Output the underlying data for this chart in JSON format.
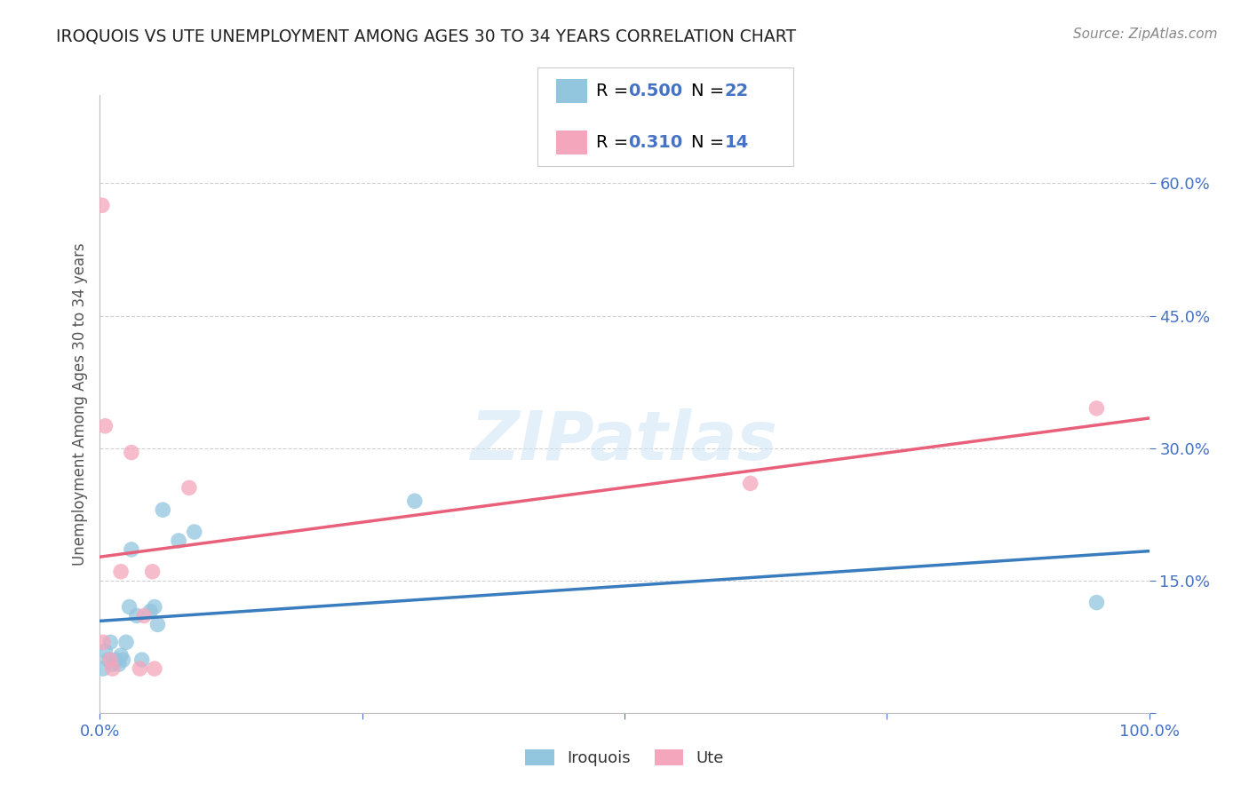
{
  "title": "IROQUOIS VS UTE UNEMPLOYMENT AMONG AGES 30 TO 34 YEARS CORRELATION CHART",
  "source": "Source: ZipAtlas.com",
  "ylabel": "Unemployment Among Ages 30 to 34 years",
  "xlim": [
    0,
    1.0
  ],
  "ylim": [
    0,
    0.7
  ],
  "xticks": [
    0.0,
    0.25,
    0.5,
    0.75,
    1.0
  ],
  "xticklabels": [
    "0.0%",
    "",
    "",
    "",
    "100.0%"
  ],
  "yticks": [
    0.0,
    0.15,
    0.3,
    0.45,
    0.6
  ],
  "yticklabels": [
    "",
    "15.0%",
    "30.0%",
    "45.0%",
    "60.0%"
  ],
  "iroquois_color": "#92c5de",
  "iroquois_line_color": "#3a7dbf",
  "iroquois_dash_color": "#92c5de",
  "ute_color": "#f4a6bc",
  "ute_line_color": "#e8607a",
  "iroquois_R": 0.5,
  "iroquois_N": 22,
  "ute_R": 0.31,
  "ute_N": 14,
  "iroquois_x": [
    0.003,
    0.005,
    0.008,
    0.01,
    0.012,
    0.015,
    0.018,
    0.02,
    0.022,
    0.025,
    0.028,
    0.03,
    0.035,
    0.04,
    0.048,
    0.052,
    0.055,
    0.06,
    0.075,
    0.09,
    0.3,
    0.95
  ],
  "iroquois_y": [
    0.05,
    0.07,
    0.06,
    0.08,
    0.055,
    0.06,
    0.055,
    0.065,
    0.06,
    0.08,
    0.12,
    0.185,
    0.11,
    0.06,
    0.115,
    0.12,
    0.1,
    0.23,
    0.195,
    0.205,
    0.24,
    0.125
  ],
  "ute_x": [
    0.002,
    0.003,
    0.005,
    0.01,
    0.012,
    0.02,
    0.03,
    0.038,
    0.042,
    0.05,
    0.052,
    0.085,
    0.62,
    0.95
  ],
  "ute_y": [
    0.575,
    0.08,
    0.325,
    0.06,
    0.05,
    0.16,
    0.295,
    0.05,
    0.11,
    0.16,
    0.05,
    0.255,
    0.26,
    0.345
  ],
  "watermark": "ZIPatlas",
  "background_color": "#ffffff",
  "grid_color": "#d0d0d0",
  "title_color": "#222222",
  "tick_label_color": "#4472c4",
  "ylabel_color": "#555555",
  "legend_r_color": "#000000",
  "legend_val_color": "#4472c4"
}
